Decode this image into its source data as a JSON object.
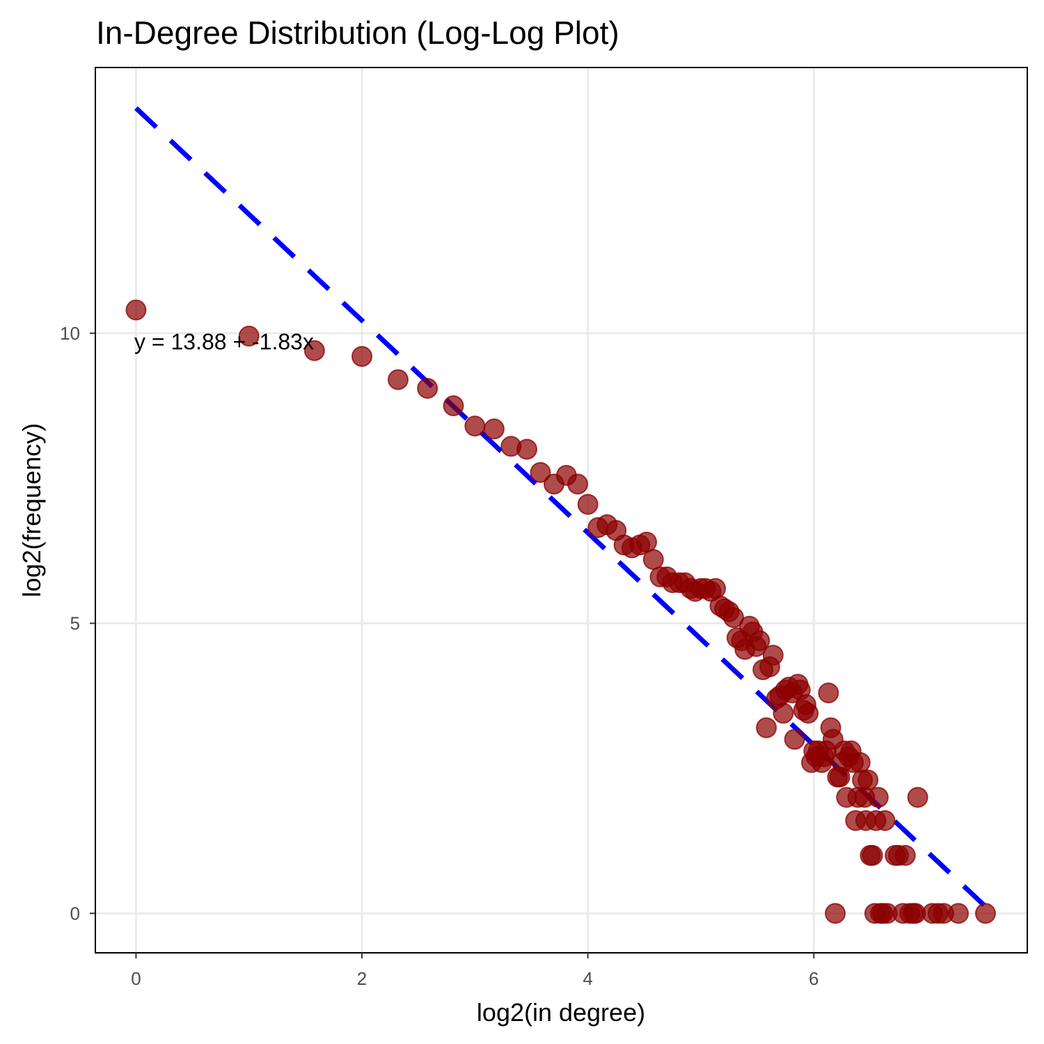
{
  "chart_data": {
    "type": "scatter",
    "title": "In-Degree Distribution (Log-Log Plot)",
    "xlabel": "log2(in degree)",
    "ylabel": "log2(frequency)",
    "xlim": [
      -0.36,
      7.89
    ],
    "ylim": [
      -0.68,
      14.58
    ],
    "x_ticks": [
      0,
      2,
      4,
      6
    ],
    "y_ticks": [
      0,
      5,
      10
    ],
    "grid": true,
    "point_color": "#8b0000",
    "fit_line": {
      "intercept": 13.88,
      "slope": -1.83,
      "x_range": [
        0,
        7.52
      ],
      "color": "#0000ff",
      "style": "dashed"
    },
    "annotation": "y = 13.88 + -1.83x",
    "points": [
      {
        "x": 0.0,
        "y": 10.4
      },
      {
        "x": 1.0,
        "y": 9.95
      },
      {
        "x": 1.58,
        "y": 9.7
      },
      {
        "x": 2.0,
        "y": 9.6
      },
      {
        "x": 2.32,
        "y": 9.2
      },
      {
        "x": 2.58,
        "y": 9.05
      },
      {
        "x": 2.81,
        "y": 8.75
      },
      {
        "x": 3.0,
        "y": 8.4
      },
      {
        "x": 3.17,
        "y": 8.35
      },
      {
        "x": 3.32,
        "y": 8.05
      },
      {
        "x": 3.46,
        "y": 8.0
      },
      {
        "x": 3.58,
        "y": 7.6
      },
      {
        "x": 3.7,
        "y": 7.4
      },
      {
        "x": 3.81,
        "y": 7.55
      },
      {
        "x": 3.91,
        "y": 7.4
      },
      {
        "x": 4.0,
        "y": 7.05
      },
      {
        "x": 4.09,
        "y": 6.65
      },
      {
        "x": 4.17,
        "y": 6.7
      },
      {
        "x": 4.25,
        "y": 6.6
      },
      {
        "x": 4.32,
        "y": 6.35
      },
      {
        "x": 4.39,
        "y": 6.3
      },
      {
        "x": 4.46,
        "y": 6.35
      },
      {
        "x": 4.52,
        "y": 6.4
      },
      {
        "x": 4.58,
        "y": 6.1
      },
      {
        "x": 4.64,
        "y": 5.8
      },
      {
        "x": 4.7,
        "y": 5.8
      },
      {
        "x": 4.75,
        "y": 5.7
      },
      {
        "x": 4.81,
        "y": 5.7
      },
      {
        "x": 4.86,
        "y": 5.7
      },
      {
        "x": 4.91,
        "y": 5.6
      },
      {
        "x": 4.95,
        "y": 5.55
      },
      {
        "x": 5.0,
        "y": 5.6
      },
      {
        "x": 5.04,
        "y": 5.6
      },
      {
        "x": 5.09,
        "y": 5.55
      },
      {
        "x": 5.13,
        "y": 5.6
      },
      {
        "x": 5.17,
        "y": 5.3
      },
      {
        "x": 5.21,
        "y": 5.25
      },
      {
        "x": 5.25,
        "y": 5.2
      },
      {
        "x": 5.29,
        "y": 5.1
      },
      {
        "x": 5.32,
        "y": 4.75
      },
      {
        "x": 5.36,
        "y": 4.7
      },
      {
        "x": 5.39,
        "y": 4.55
      },
      {
        "x": 5.43,
        "y": 4.95
      },
      {
        "x": 5.46,
        "y": 4.85
      },
      {
        "x": 5.49,
        "y": 4.6
      },
      {
        "x": 5.52,
        "y": 4.7
      },
      {
        "x": 5.55,
        "y": 4.2
      },
      {
        "x": 5.58,
        "y": 3.2
      },
      {
        "x": 5.61,
        "y": 4.25
      },
      {
        "x": 5.64,
        "y": 4.45
      },
      {
        "x": 5.67,
        "y": 3.7
      },
      {
        "x": 5.7,
        "y": 3.75
      },
      {
        "x": 5.73,
        "y": 3.45
      },
      {
        "x": 5.75,
        "y": 3.85
      },
      {
        "x": 5.78,
        "y": 3.9
      },
      {
        "x": 5.81,
        "y": 3.8
      },
      {
        "x": 5.83,
        "y": 3.0
      },
      {
        "x": 5.86,
        "y": 3.95
      },
      {
        "x": 5.88,
        "y": 3.85
      },
      {
        "x": 5.91,
        "y": 3.5
      },
      {
        "x": 5.93,
        "y": 3.6
      },
      {
        "x": 5.95,
        "y": 3.45
      },
      {
        "x": 5.98,
        "y": 2.6
      },
      {
        "x": 6.0,
        "y": 2.8
      },
      {
        "x": 6.02,
        "y": 2.7
      },
      {
        "x": 6.04,
        "y": 2.8
      },
      {
        "x": 6.07,
        "y": 2.6
      },
      {
        "x": 6.09,
        "y": 2.7
      },
      {
        "x": 6.11,
        "y": 2.8
      },
      {
        "x": 6.13,
        "y": 3.8
      },
      {
        "x": 6.15,
        "y": 3.2
      },
      {
        "x": 6.17,
        "y": 3.0
      },
      {
        "x": 6.19,
        "y": 0.0
      },
      {
        "x": 6.21,
        "y": 2.35
      },
      {
        "x": 6.23,
        "y": 2.35
      },
      {
        "x": 6.25,
        "y": 2.6
      },
      {
        "x": 6.27,
        "y": 2.8
      },
      {
        "x": 6.29,
        "y": 2.0
      },
      {
        "x": 6.31,
        "y": 2.7
      },
      {
        "x": 6.33,
        "y": 2.8
      },
      {
        "x": 6.35,
        "y": 2.6
      },
      {
        "x": 6.37,
        "y": 1.6
      },
      {
        "x": 6.39,
        "y": 2.0
      },
      {
        "x": 6.41,
        "y": 2.6
      },
      {
        "x": 6.43,
        "y": 2.3
      },
      {
        "x": 6.45,
        "y": 2.0
      },
      {
        "x": 6.46,
        "y": 1.6
      },
      {
        "x": 6.48,
        "y": 2.3
      },
      {
        "x": 6.5,
        "y": 1.0
      },
      {
        "x": 6.52,
        "y": 1.0
      },
      {
        "x": 6.54,
        "y": 0.0
      },
      {
        "x": 6.55,
        "y": 1.6
      },
      {
        "x": 6.57,
        "y": 2.0
      },
      {
        "x": 6.59,
        "y": 0.0
      },
      {
        "x": 6.61,
        "y": 0.0
      },
      {
        "x": 6.63,
        "y": 1.6
      },
      {
        "x": 6.65,
        "y": 0.0
      },
      {
        "x": 6.72,
        "y": 1.0
      },
      {
        "x": 6.75,
        "y": 1.0
      },
      {
        "x": 6.79,
        "y": 0.0
      },
      {
        "x": 6.81,
        "y": 1.0
      },
      {
        "x": 6.85,
        "y": 0.0
      },
      {
        "x": 6.88,
        "y": 0.0
      },
      {
        "x": 6.9,
        "y": 0.0
      },
      {
        "x": 6.92,
        "y": 2.0
      },
      {
        "x": 7.05,
        "y": 0.0
      },
      {
        "x": 7.1,
        "y": 0.0
      },
      {
        "x": 7.15,
        "y": 0.0
      },
      {
        "x": 7.28,
        "y": 0.0
      },
      {
        "x": 7.52,
        "y": 0.0
      }
    ]
  }
}
